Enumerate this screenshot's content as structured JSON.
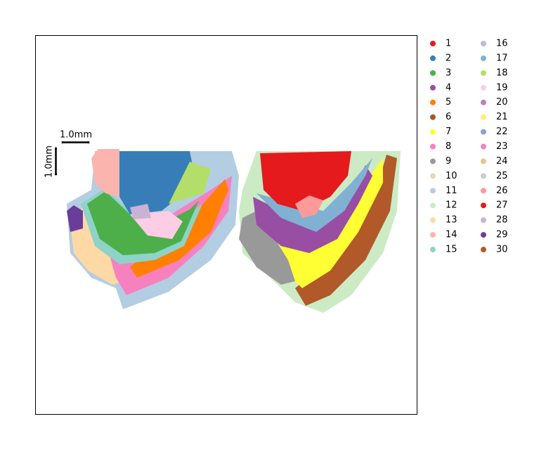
{
  "chart_data": {
    "type": "spatial",
    "scalebar_label": "1.0mm",
    "categories": [
      "1",
      "2",
      "3",
      "4",
      "5",
      "6",
      "7",
      "8",
      "9",
      "10",
      "11",
      "12",
      "13",
      "14",
      "15",
      "16",
      "17",
      "18",
      "19",
      "20",
      "21",
      "22",
      "23",
      "24",
      "25",
      "26",
      "27",
      "28",
      "29",
      "30"
    ],
    "colors": [
      "#e41a1c",
      "#377eb8",
      "#4daf4a",
      "#984ea3",
      "#ff7f00",
      "#a65628",
      "#ffff33",
      "#f781bf",
      "#999999",
      "#e5d8bd",
      "#b3cde3",
      "#ccebc5",
      "#fed9a6",
      "#fbb4ae",
      "#8dd3c7",
      "#bebada",
      "#80b1d3",
      "#b3de69",
      "#fccde5",
      "#bc80bd",
      "#ffed6f",
      "#8da0cb",
      "#e78ac3",
      "#e5c494",
      "#cccccc",
      "#fb9a99",
      "#e31a1c",
      "#cab2d6",
      "#6a3d9a",
      "#b15928"
    ]
  }
}
